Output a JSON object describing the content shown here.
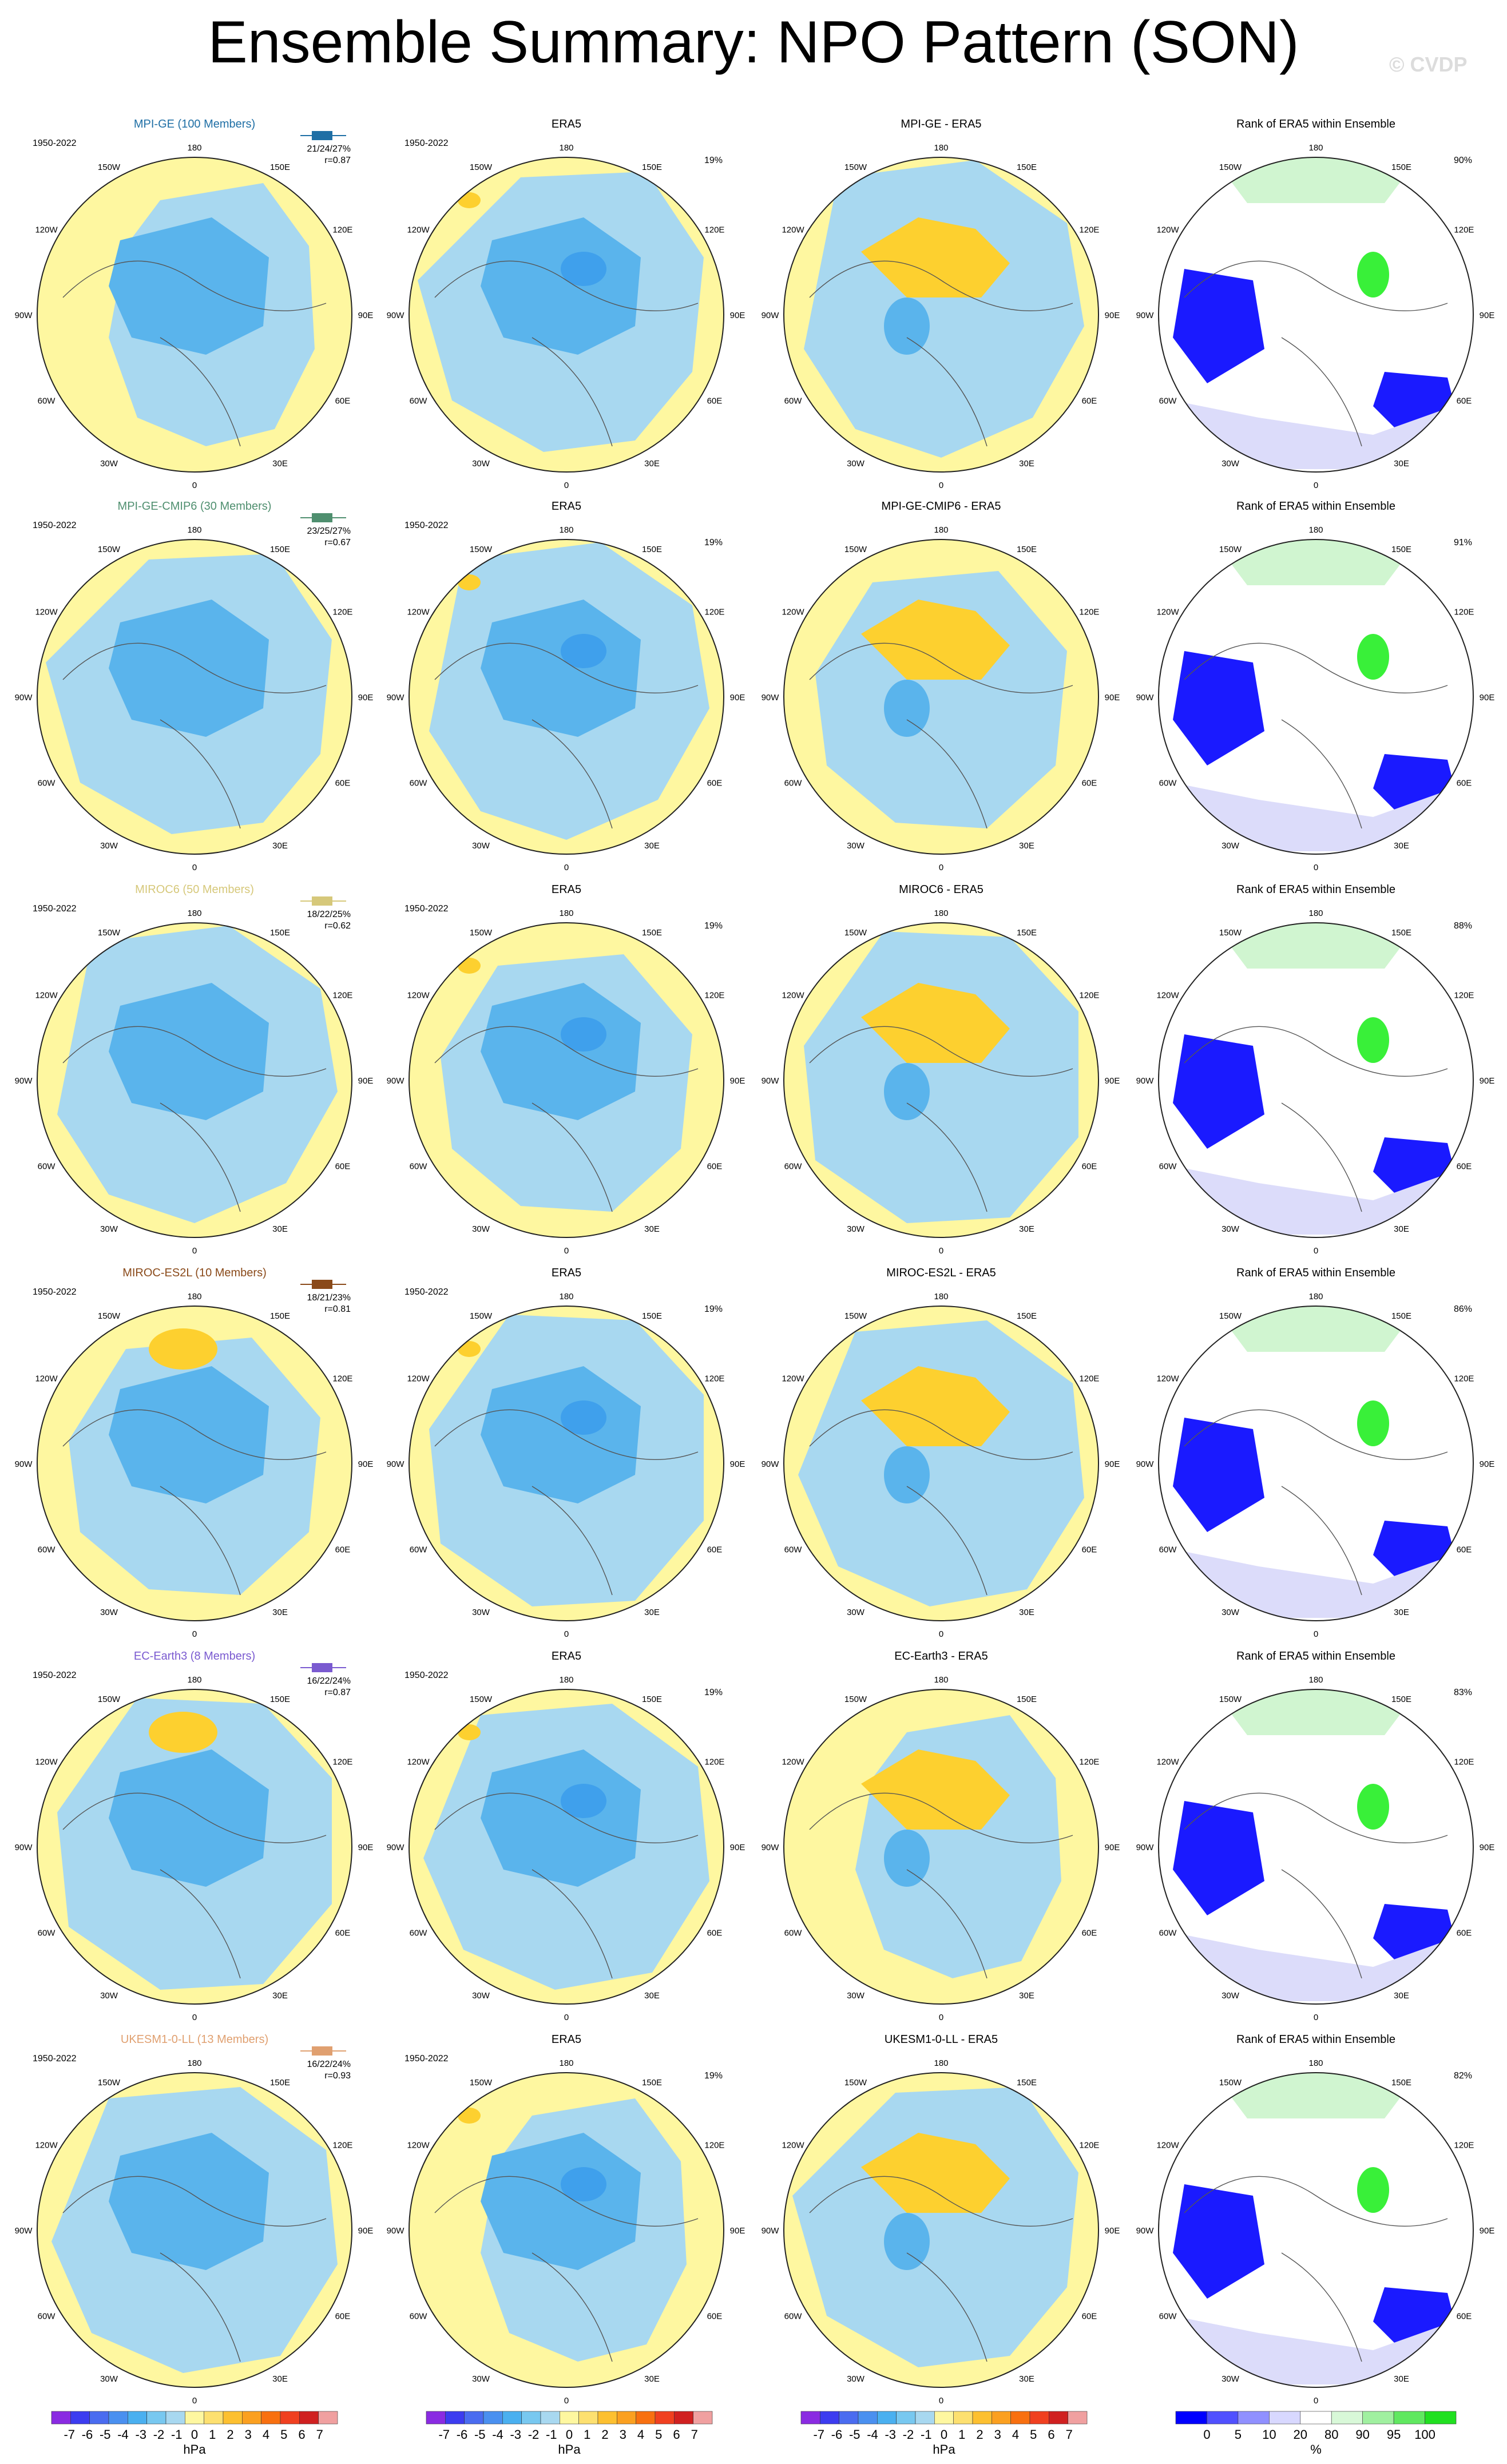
{
  "title": "Ensemble Summary: NPO Pattern (SON)",
  "copyright": "© CVDP",
  "colors": {
    "land_yellow": "#fef7a0",
    "light_blue": "#a8d8f0",
    "mid_blue": "#5ab4ec",
    "deep_blue": "#3fa0ec",
    "orange": "#fdd02f",
    "rank_blue": "#1a1aff",
    "rank_lightblue": "#dcdcfa",
    "rank_green": "#39f039",
    "rank_lightgreen": "#d0f5d0"
  },
  "longitude_labels": [
    "180",
    "150E",
    "120E",
    "90E",
    "60E",
    "30E",
    "0",
    "30W",
    "60W",
    "90W",
    "120W",
    "150W"
  ],
  "rows": [
    {
      "model": "MPI-GE (100 Members)",
      "model_color": "#1f6fa5",
      "period": "1950-2022",
      "stats": "21/24/27%",
      "r": "r=0.87",
      "era5_pct": "19%",
      "diff_title": "MPI-GE - ERA5",
      "rank_title": "Rank of ERA5 within Ensemble",
      "rank_pct": "90%"
    },
    {
      "model": "MPI-GE-CMIP6 (30 Members)",
      "model_color": "#4f8f6f",
      "period": "1950-2022",
      "stats": "23/25/27%",
      "r": "r=0.67",
      "era5_pct": "19%",
      "diff_title": "MPI-GE-CMIP6 - ERA5",
      "rank_title": "Rank of ERA5 within Ensemble",
      "rank_pct": "91%"
    },
    {
      "model": "MIROC6 (50 Members)",
      "model_color": "#d6c87a",
      "period": "1950-2022",
      "stats": "18/22/25%",
      "r": "r=0.62",
      "era5_pct": "19%",
      "diff_title": "MIROC6 - ERA5",
      "rank_title": "Rank of ERA5 within Ensemble",
      "rank_pct": "88%"
    },
    {
      "model": "MIROC-ES2L (10 Members)",
      "model_color": "#8a4a1a",
      "period": "1950-2022",
      "stats": "18/21/23%",
      "r": "r=0.81",
      "era5_pct": "19%",
      "diff_title": "MIROC-ES2L - ERA5",
      "rank_title": "Rank of ERA5 within Ensemble",
      "rank_pct": "86%"
    },
    {
      "model": "EC-Earth3 (8 Members)",
      "model_color": "#7a5ad0",
      "period": "1950-2022",
      "stats": "16/22/24%",
      "r": "r=0.87",
      "era5_pct": "19%",
      "diff_title": "EC-Earth3 - ERA5",
      "rank_title": "Rank of ERA5 within Ensemble",
      "rank_pct": "83%"
    },
    {
      "model": "UKESM1-0-LL (13 Members)",
      "model_color": "#e0a070",
      "period": "1950-2022",
      "stats": "16/22/24%",
      "r": "r=0.93",
      "era5_pct": "19%",
      "diff_title": "UKESM1-0-LL - ERA5",
      "rank_title": "Rank of ERA5 within Ensemble",
      "rank_pct": "82%"
    }
  ],
  "era5_title": "ERA5",
  "hpa_colorbar": {
    "labels": [
      "-7",
      "-6",
      "-5",
      "-4",
      "-3",
      "-2",
      "-1",
      "0",
      "1",
      "2",
      "3",
      "4",
      "5",
      "6",
      "7"
    ],
    "unit": "hPa",
    "colors": [
      "#8a2be2",
      "#3c3cf0",
      "#4a6cf0",
      "#4a90f0",
      "#4ab0f0",
      "#78c8f0",
      "#a8d8f0",
      "#fef7a0",
      "#fde070",
      "#fdc030",
      "#fba020",
      "#f87010",
      "#f04020",
      "#d02020",
      "#f0a0a0"
    ]
  },
  "rank_colorbar": {
    "labels": [
      "0",
      "5",
      "10",
      "20",
      "80",
      "90",
      "95",
      "100"
    ],
    "unit": "%",
    "colors": [
      "#0000ff",
      "#5050ff",
      "#9090ff",
      "#d8d8ff",
      "#ffffff",
      "#d8f8d8",
      "#a0f0a0",
      "#60e860",
      "#20e020"
    ]
  }
}
